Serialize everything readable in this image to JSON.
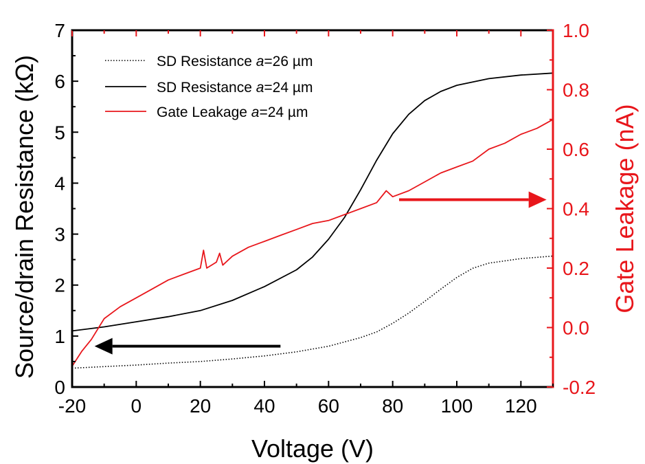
{
  "chart_data": {
    "type": "line",
    "title": "",
    "xlabel": "Voltage (V)",
    "ylabel_left": "Source/drain Resistance (kΩ)",
    "ylabel_right": "Gate Leakage (nA)",
    "xlim": [
      -20,
      130
    ],
    "ylim_left": [
      0,
      7
    ],
    "ylim_right": [
      -0.2,
      1.0
    ],
    "x_ticks": [
      "-20",
      "0",
      "20",
      "40",
      "60",
      "80",
      "100",
      "120"
    ],
    "x_tick_values": [
      -20,
      0,
      20,
      40,
      60,
      80,
      100,
      120
    ],
    "y_left_ticks": [
      "0",
      "1",
      "2",
      "3",
      "4",
      "5",
      "6",
      "7"
    ],
    "y_left_tick_values": [
      0,
      1,
      2,
      3,
      4,
      5,
      6,
      7
    ],
    "y_right_ticks": [
      "-0.2",
      "0.0",
      "0.2",
      "0.4",
      "0.6",
      "0.8",
      "1.0"
    ],
    "y_right_tick_values": [
      -0.2,
      0.0,
      0.2,
      0.4,
      0.6,
      0.8,
      1.0
    ],
    "grid": false,
    "legend_position": "top-left",
    "colors": {
      "black": "#000000",
      "red": "#e8161b"
    },
    "series": [
      {
        "name": "SD Resistance a=26 µm",
        "axis": "left",
        "style": "dotted",
        "color": "#000000",
        "x": [
          -20,
          -10,
          0,
          10,
          20,
          30,
          40,
          50,
          60,
          70,
          75,
          80,
          85,
          90,
          95,
          100,
          105,
          110,
          120,
          130
        ],
        "y": [
          0.37,
          0.4,
          0.43,
          0.47,
          0.5,
          0.55,
          0.61,
          0.69,
          0.8,
          0.97,
          1.08,
          1.25,
          1.45,
          1.68,
          1.92,
          2.15,
          2.33,
          2.43,
          2.52,
          2.57
        ]
      },
      {
        "name": "SD Resistance a=24 µm",
        "axis": "left",
        "style": "solid",
        "color": "#000000",
        "x": [
          -20,
          -10,
          0,
          10,
          20,
          30,
          40,
          50,
          55,
          60,
          65,
          70,
          75,
          80,
          85,
          90,
          95,
          100,
          110,
          120,
          130
        ],
        "y": [
          1.1,
          1.18,
          1.28,
          1.38,
          1.5,
          1.7,
          1.97,
          2.3,
          2.55,
          2.9,
          3.33,
          3.87,
          4.45,
          4.97,
          5.35,
          5.62,
          5.8,
          5.92,
          6.05,
          6.12,
          6.16
        ]
      },
      {
        "name": "Gate Leakage a=24 µm",
        "axis": "right",
        "style": "solid",
        "color": "#e8161b",
        "x": [
          -20,
          -17,
          -14,
          -10,
          -5,
          0,
          5,
          10,
          15,
          20,
          21,
          22,
          25,
          26,
          27,
          30,
          35,
          40,
          45,
          50,
          55,
          60,
          65,
          70,
          75,
          78,
          80,
          85,
          90,
          95,
          100,
          105,
          110,
          115,
          120,
          125,
          130
        ],
        "y": [
          -0.13,
          -0.08,
          -0.04,
          0.03,
          0.07,
          0.1,
          0.13,
          0.16,
          0.18,
          0.2,
          0.26,
          0.2,
          0.22,
          0.25,
          0.21,
          0.24,
          0.27,
          0.29,
          0.31,
          0.33,
          0.35,
          0.36,
          0.38,
          0.4,
          0.42,
          0.46,
          0.44,
          0.46,
          0.49,
          0.52,
          0.54,
          0.56,
          0.6,
          0.62,
          0.65,
          0.67,
          0.7
        ]
      }
    ],
    "legend": [
      {
        "prefix": "SD Resistance ",
        "italic": "a",
        "suffix": "=26 µm"
      },
      {
        "prefix": "SD Resistance ",
        "italic": "a",
        "suffix": "=24 µm"
      },
      {
        "prefix": "Gate Leakage ",
        "italic": "a",
        "suffix": "=24 µm"
      }
    ],
    "annotations": [
      {
        "type": "arrow",
        "direction": "left",
        "color": "#000000",
        "axis": "left",
        "from_x": 45,
        "to_x": -13,
        "y": 0.8
      },
      {
        "type": "arrow",
        "direction": "right",
        "color": "#e8161b",
        "axis": "right",
        "from_x": 82,
        "to_x": 128,
        "y": 0.43
      }
    ]
  }
}
